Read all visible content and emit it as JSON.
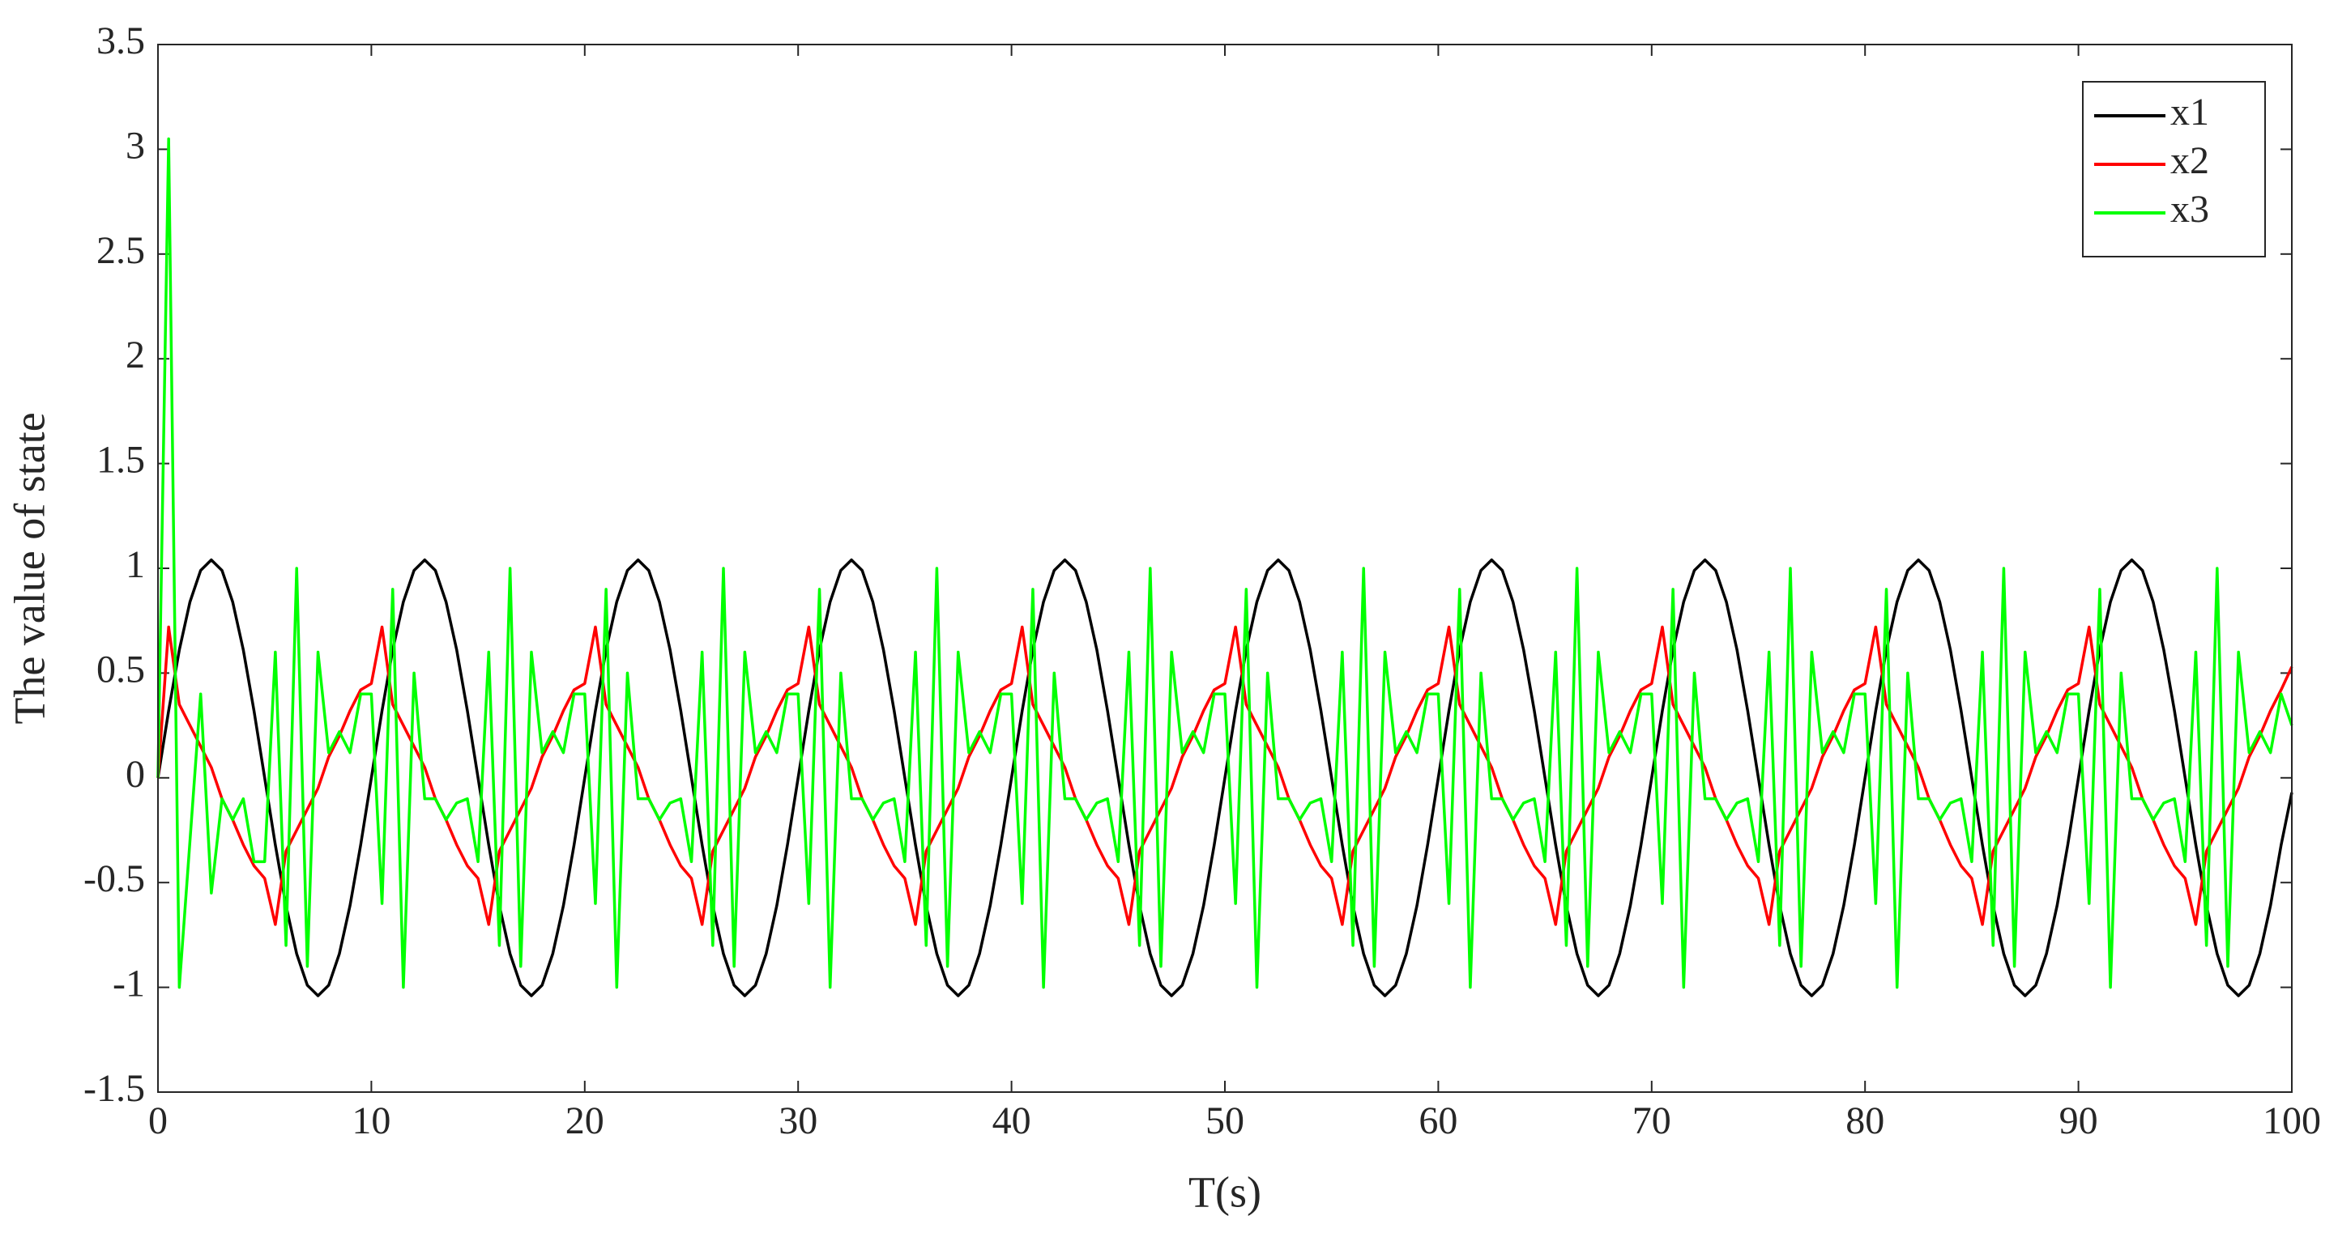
{
  "chart_data": {
    "type": "line",
    "xlabel": "T(s)",
    "ylabel": "The value of state",
    "xlim": [
      0,
      100
    ],
    "ylim": [
      -1.5,
      3.5
    ],
    "xticks": [
      0,
      10,
      20,
      30,
      40,
      50,
      60,
      70,
      80,
      90,
      100
    ],
    "yticks": [
      -1.5,
      -1,
      -0.5,
      0,
      0.5,
      1,
      1.5,
      2,
      2.5,
      3,
      3.5
    ],
    "legend": "upper right",
    "x": [
      0,
      0.5,
      1,
      1.5,
      2,
      2.5,
      3,
      3.5,
      4,
      4.5,
      5,
      5.5,
      6,
      6.5,
      7,
      7.5,
      8,
      8.5,
      9,
      9.5,
      10,
      10.5,
      11,
      11.5,
      12,
      12.5,
      13,
      13.5,
      14,
      14.5,
      15,
      15.5,
      16,
      16.5,
      17,
      17.5,
      18,
      18.5,
      19,
      19.5,
      20,
      20.5,
      21,
      21.5,
      22,
      22.5,
      23,
      23.5,
      24,
      24.5,
      25,
      25.5,
      26,
      26.5,
      27,
      27.5,
      28,
      28.5,
      29,
      29.5,
      30,
      30.5,
      31,
      31.5,
      32,
      32.5,
      33,
      33.5,
      34,
      34.5,
      35,
      35.5,
      36,
      36.5,
      37,
      37.5,
      38,
      38.5,
      39,
      39.5,
      40,
      40.5,
      41,
      41.5,
      42,
      42.5,
      43,
      43.5,
      44,
      44.5,
      45,
      45.5,
      46,
      46.5,
      47,
      47.5,
      48,
      48.5,
      49,
      49.5,
      50,
      50.5,
      51,
      51.5,
      52,
      52.5,
      53,
      53.5,
      54,
      54.5,
      55,
      55.5,
      56,
      56.5,
      57,
      57.5,
      58,
      58.5,
      59,
      59.5,
      60,
      60.5,
      61,
      61.5,
      62,
      62.5,
      63,
      63.5,
      64,
      64.5,
      65,
      65.5,
      66,
      66.5,
      67,
      67.5,
      68,
      68.5,
      69,
      69.5,
      70,
      70.5,
      71,
      71.5,
      72,
      72.5,
      73,
      73.5,
      74,
      74.5,
      75,
      75.5,
      76,
      76.5,
      77,
      77.5,
      78,
      78.5,
      79,
      79.5,
      80,
      80.5,
      81,
      81.5,
      82,
      82.5,
      83,
      83.5,
      84,
      84.5,
      85,
      85.5,
      86,
      86.5,
      87,
      87.5,
      88,
      88.5,
      89,
      89.5,
      90,
      90.5,
      91,
      91.5,
      92,
      92.5,
      93,
      93.5,
      94,
      94.5,
      95,
      95.5,
      96,
      96.5,
      97,
      97.5,
      98,
      98.5,
      99,
      99.5,
      100
    ],
    "series": [
      {
        "name": "x1",
        "color": "#000000",
        "values": [
          0,
          0.32,
          0.61,
          0.84,
          0.99,
          1.04,
          0.99,
          0.84,
          0.61,
          0.32,
          0,
          -0.32,
          -0.61,
          -0.84,
          -0.99,
          -1.04,
          -0.99,
          -0.84,
          -0.61,
          -0.32,
          0,
          0.32,
          0.61,
          0.84,
          0.99,
          1.04,
          0.99,
          0.84,
          0.61,
          0.32,
          0,
          -0.32,
          -0.61,
          -0.84,
          -0.99,
          -1.04,
          -0.99,
          -0.84,
          -0.61,
          -0.32,
          0,
          0.32,
          0.61,
          0.84,
          0.99,
          1.04,
          0.99,
          0.84,
          0.61,
          0.32,
          0,
          -0.32,
          -0.61,
          -0.84,
          -0.99,
          -1.04,
          -0.99,
          -0.84,
          -0.61,
          -0.32,
          0,
          0.32,
          0.61,
          0.84,
          0.99,
          1.04,
          0.99,
          0.84,
          0.61,
          0.32,
          0,
          -0.32,
          -0.61,
          -0.84,
          -0.99,
          -1.04,
          -0.99,
          -0.84,
          -0.61,
          -0.32,
          0,
          0.32,
          0.61,
          0.84,
          0.99,
          1.04,
          0.99,
          0.84,
          0.61,
          0.32,
          0,
          -0.32,
          -0.61,
          -0.84,
          -0.99,
          -1.04,
          -0.99,
          -0.84,
          -0.61,
          -0.32,
          0,
          0.32,
          0.61,
          0.84,
          0.99,
          1.04,
          0.99,
          0.84,
          0.61,
          0.32,
          0,
          -0.32,
          -0.61,
          -0.84,
          -0.99,
          -1.04,
          -0.99,
          -0.84,
          -0.61,
          -0.32,
          0,
          0.32,
          0.61,
          0.84,
          0.99,
          1.04,
          0.99,
          0.84,
          0.61,
          0.32,
          0,
          -0.32,
          -0.61,
          -0.84,
          -0.99,
          -1.04,
          -0.99,
          -0.84,
          -0.61,
          -0.32,
          0,
          0.32,
          0.61,
          0.84,
          0.99,
          1.04,
          0.99,
          0.84,
          0.61,
          0.32,
          0,
          -0.32,
          -0.61,
          -0.84,
          -0.99,
          -1.04,
          -0.99,
          -0.84,
          -0.61,
          -0.32,
          0,
          0.32,
          0.61,
          0.84,
          0.99,
          1.04,
          0.99,
          0.84,
          0.61,
          0.32,
          0,
          -0.32,
          -0.61,
          -0.84,
          -0.99,
          -1.04,
          -0.99,
          -0.84,
          -0.61,
          -0.32,
          0,
          0.32,
          0.61,
          0.84,
          0.99,
          1.04,
          0.99,
          0.84,
          0.61,
          0.32,
          0,
          -0.32,
          -0.61,
          -0.84,
          -0.99,
          -1.04,
          -0.99,
          -0.84,
          -0.61,
          -0.32,
          -0.07
        ]
      },
      {
        "name": "x2",
        "color": "#ff0000",
        "values": [
          0,
          0.72,
          0.35,
          0.25,
          0.15,
          0.05,
          -0.1,
          -0.2,
          -0.32,
          -0.42,
          -0.48,
          -0.7,
          -0.35,
          -0.25,
          -0.15,
          -0.05,
          0.1,
          0.2,
          0.32,
          0.42,
          0.45,
          0.72,
          0.35,
          0.25,
          0.15,
          0.05,
          -0.1,
          -0.2,
          -0.32,
          -0.42,
          -0.48,
          -0.7,
          -0.35,
          -0.25,
          -0.15,
          -0.05,
          0.1,
          0.2,
          0.32,
          0.42,
          0.45,
          0.72,
          0.35,
          0.25,
          0.15,
          0.05,
          -0.1,
          -0.2,
          -0.32,
          -0.42,
          -0.48,
          -0.7,
          -0.35,
          -0.25,
          -0.15,
          -0.05,
          0.1,
          0.2,
          0.32,
          0.42,
          0.45,
          0.72,
          0.35,
          0.25,
          0.15,
          0.05,
          -0.1,
          -0.2,
          -0.32,
          -0.42,
          -0.48,
          -0.7,
          -0.35,
          -0.25,
          -0.15,
          -0.05,
          0.1,
          0.2,
          0.32,
          0.42,
          0.45,
          0.72,
          0.35,
          0.25,
          0.15,
          0.05,
          -0.1,
          -0.2,
          -0.32,
          -0.42,
          -0.48,
          -0.7,
          -0.35,
          -0.25,
          -0.15,
          -0.05,
          0.1,
          0.2,
          0.32,
          0.42,
          0.45,
          0.72,
          0.35,
          0.25,
          0.15,
          0.05,
          -0.1,
          -0.2,
          -0.32,
          -0.42,
          -0.48,
          -0.7,
          -0.35,
          -0.25,
          -0.15,
          -0.05,
          0.1,
          0.2,
          0.32,
          0.42,
          0.45,
          0.72,
          0.35,
          0.25,
          0.15,
          0.05,
          -0.1,
          -0.2,
          -0.32,
          -0.42,
          -0.48,
          -0.7,
          -0.35,
          -0.25,
          -0.15,
          -0.05,
          0.1,
          0.2,
          0.32,
          0.42,
          0.45,
          0.72,
          0.35,
          0.25,
          0.15,
          0.05,
          -0.1,
          -0.2,
          -0.32,
          -0.42,
          -0.48,
          -0.7,
          -0.35,
          -0.25,
          -0.15,
          -0.05,
          0.1,
          0.2,
          0.32,
          0.42,
          0.45,
          0.72,
          0.35,
          0.25,
          0.15,
          0.05,
          -0.1,
          -0.2,
          -0.32,
          -0.42,
          -0.48,
          -0.7,
          -0.35,
          -0.25,
          -0.15,
          -0.05,
          0.1,
          0.2,
          0.32,
          0.42,
          0.45,
          0.72,
          0.35,
          0.25,
          0.15,
          0.05,
          -0.1,
          -0.2,
          -0.32,
          -0.42,
          -0.48,
          -0.7,
          -0.35,
          -0.25,
          -0.15,
          -0.05,
          0.1,
          0.2,
          0.32,
          0.42,
          0.53
        ]
      },
      {
        "name": "x3",
        "color": "#00ff00",
        "values": [
          0,
          3.05,
          -1,
          -0.3,
          0.4,
          -0.55,
          -0.1,
          -0.2,
          -0.1,
          -0.4,
          -0.4,
          0.6,
          -0.8,
          1,
          -0.9,
          0.6,
          0.12,
          0.22,
          0.12,
          0.4,
          0.4,
          -0.6,
          0.9,
          -1,
          0.5,
          -0.1,
          -0.1,
          -0.2,
          -0.12,
          -0.1,
          -0.4,
          0.6,
          -0.8,
          1,
          -0.9,
          0.6,
          0.12,
          0.22,
          0.12,
          0.4,
          0.4,
          -0.6,
          0.9,
          -1,
          0.5,
          -0.1,
          -0.1,
          -0.2,
          -0.12,
          -0.1,
          -0.4,
          0.6,
          -0.8,
          1,
          -0.9,
          0.6,
          0.12,
          0.22,
          0.12,
          0.4,
          0.4,
          -0.6,
          0.9,
          -1,
          0.5,
          -0.1,
          -0.1,
          -0.2,
          -0.12,
          -0.1,
          -0.4,
          0.6,
          -0.8,
          1,
          -0.9,
          0.6,
          0.12,
          0.22,
          0.12,
          0.4,
          0.4,
          -0.6,
          0.9,
          -1,
          0.5,
          -0.1,
          -0.1,
          -0.2,
          -0.12,
          -0.1,
          -0.4,
          0.6,
          -0.8,
          1,
          -0.9,
          0.6,
          0.12,
          0.22,
          0.12,
          0.4,
          0.4,
          -0.6,
          0.9,
          -1,
          0.5,
          -0.1,
          -0.1,
          -0.2,
          -0.12,
          -0.1,
          -0.4,
          0.6,
          -0.8,
          1,
          -0.9,
          0.6,
          0.12,
          0.22,
          0.12,
          0.4,
          0.4,
          -0.6,
          0.9,
          -1,
          0.5,
          -0.1,
          -0.1,
          -0.2,
          -0.12,
          -0.1,
          -0.4,
          0.6,
          -0.8,
          1,
          -0.9,
          0.6,
          0.12,
          0.22,
          0.12,
          0.4,
          0.4,
          -0.6,
          0.9,
          -1,
          0.5,
          -0.1,
          -0.1,
          -0.2,
          -0.12,
          -0.1,
          -0.4,
          0.6,
          -0.8,
          1,
          -0.9,
          0.6,
          0.12,
          0.22,
          0.12,
          0.4,
          0.4,
          -0.6,
          0.9,
          -1,
          0.5,
          -0.1,
          -0.1,
          -0.2,
          -0.12,
          -0.1,
          -0.4,
          0.6,
          -0.8,
          1,
          -0.9,
          0.6,
          0.12,
          0.22,
          0.12,
          0.4,
          0.4,
          -0.6,
          0.9,
          -1,
          0.5,
          -0.1,
          -0.1,
          -0.2,
          -0.12,
          -0.1,
          -0.4,
          0.6,
          -0.8,
          1,
          -0.9,
          0.6,
          0.12,
          0.22,
          0.12,
          0.4,
          0.25
        ]
      }
    ]
  }
}
